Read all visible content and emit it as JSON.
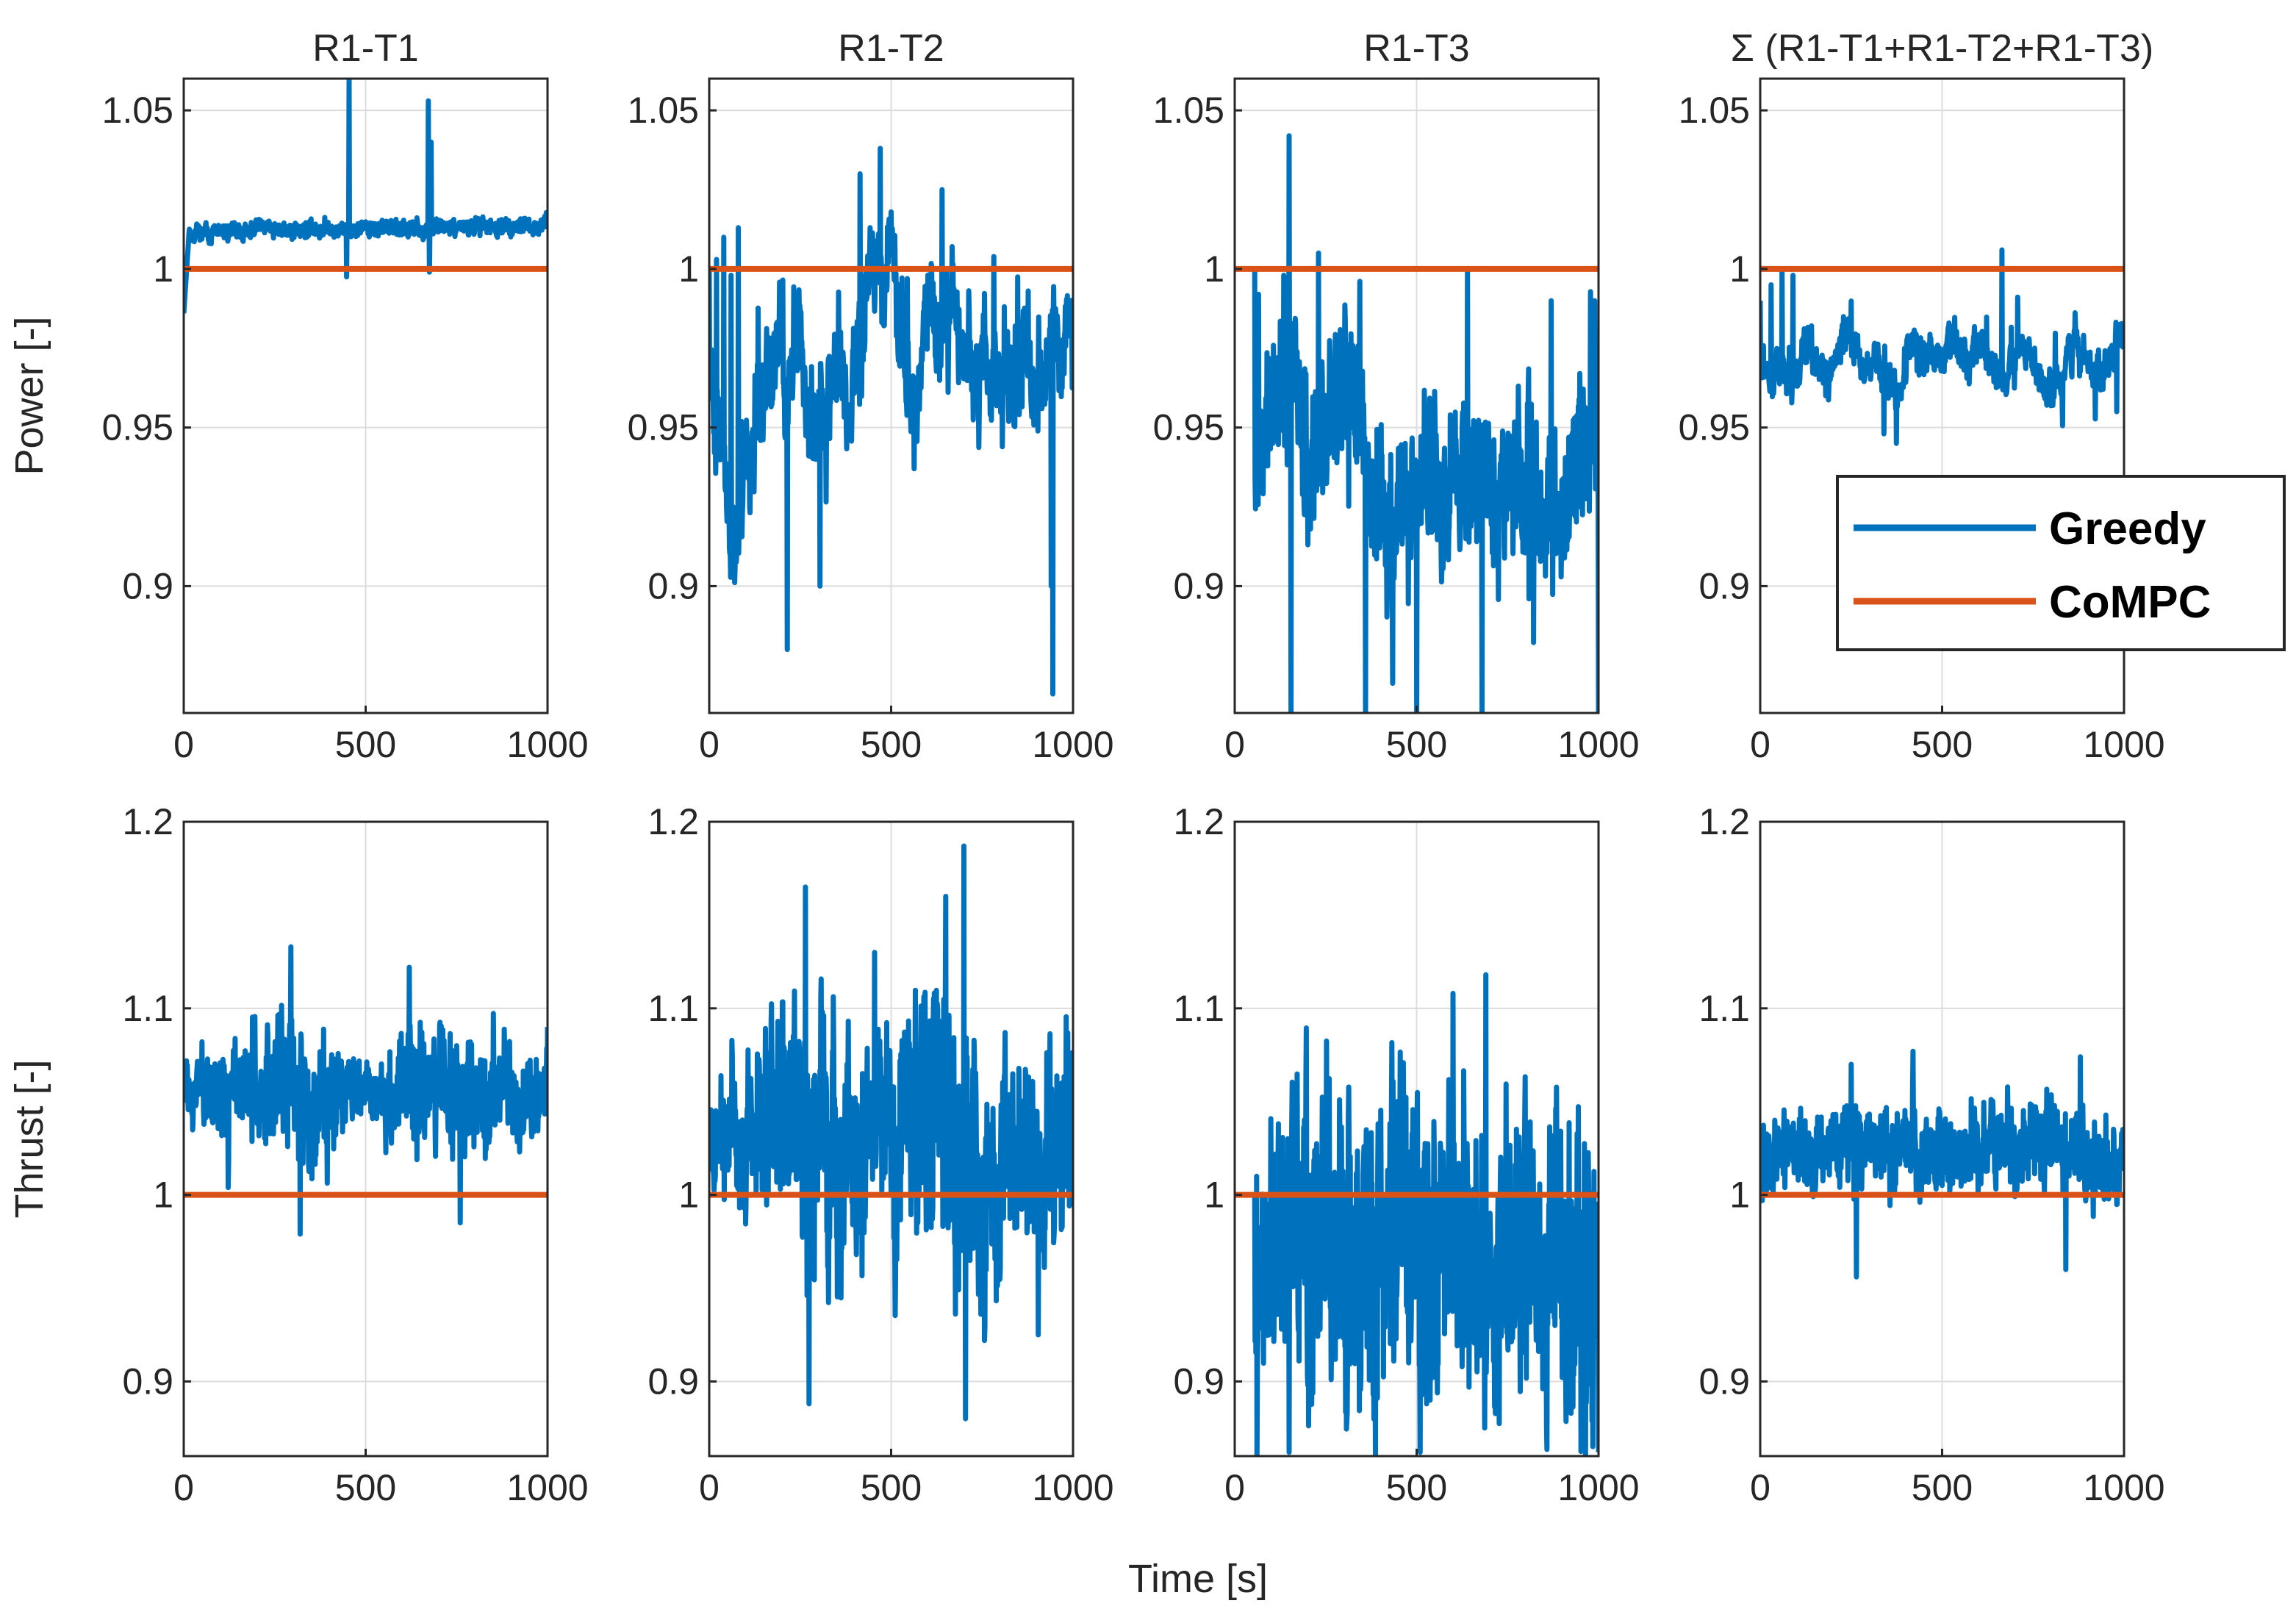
{
  "chart_data": [
    {
      "type": "line",
      "id": "p-r1t1",
      "row": 0,
      "col": 0,
      "title": "R1-T1",
      "ylabel": "Power [-]",
      "xlabel": "",
      "xlim": [
        0,
        1000
      ],
      "ylim": [
        0.86,
        1.06
      ],
      "xticks": [
        0,
        500,
        1000
      ],
      "xticklabels": [
        "0",
        "500",
        "1000"
      ],
      "yticks": [
        0.9,
        0.95,
        1,
        1.05
      ],
      "yticklabels": [
        "0.9",
        "0.95",
        "1",
        "1.05"
      ],
      "grid": true,
      "series": [
        {
          "name": "Greedy",
          "gen": {
            "start": 0,
            "base": 1.012,
            "baseEnd": 1.013,
            "noise": 0.0018,
            "sharp": 0,
            "slow": 0.0005,
            "ramp": [
              0.986,
              0.012,
              15
            ],
            "seed": 11,
            "spikes": [
              [
                455,
                1.06
              ],
              [
                448,
                0.9975
              ],
              [
                672,
                1.053
              ],
              [
                676,
                0.999
              ],
              [
                680,
                1.04
              ]
            ]
          }
        },
        {
          "name": "CoMPC",
          "x": [
            0,
            1000
          ],
          "y": [
            1,
            1
          ]
        }
      ]
    },
    {
      "type": "line",
      "id": "p-r1t2",
      "row": 0,
      "col": 1,
      "title": "R1-T2",
      "ylabel": "",
      "xlabel": "",
      "xlim": [
        0,
        1000
      ],
      "ylim": [
        0.86,
        1.06
      ],
      "xticks": [
        0,
        500,
        1000
      ],
      "xticklabels": [
        "0",
        "500",
        "1000"
      ],
      "yticks": [
        0.9,
        0.95,
        1,
        1.05
      ],
      "yticklabels": [
        "0.9",
        "0.95",
        "1",
        "1.05"
      ],
      "grid": true,
      "series": [
        {
          "name": "Greedy",
          "gen": {
            "start": 0,
            "base": 0.972,
            "noise": 0.008,
            "sharp": 0.006,
            "slow": 0.022,
            "seed": 23,
            "head": [
              [
                0,
                1.0
              ],
              [
                20,
                1.003
              ],
              [
                40,
                1.01
              ],
              [
                60,
                0.998
              ],
              [
                80,
                1.013
              ]
            ],
            "spikes": [
              [
                215,
                0.88
              ],
              [
                470,
                1.038
              ],
              [
                945,
                0.866
              ],
              [
                940,
                0.9
              ],
              [
                415,
                1.03
              ],
              [
                640,
                1.025
              ],
              [
                305,
                0.9
              ]
            ]
          }
        },
        {
          "name": "CoMPC",
          "x": [
            0,
            1000
          ],
          "y": [
            1,
            1
          ]
        }
      ]
    },
    {
      "type": "line",
      "id": "p-r1t3",
      "row": 0,
      "col": 2,
      "title": "R1-T3",
      "ylabel": "",
      "xlabel": "",
      "xlim": [
        0,
        1000
      ],
      "ylim": [
        0.86,
        1.06
      ],
      "xticks": [
        0,
        500,
        1000
      ],
      "xticklabels": [
        "0",
        "500",
        "1000"
      ],
      "yticks": [
        0.9,
        0.95,
        1,
        1.05
      ],
      "yticklabels": [
        "0.9",
        "0.95",
        "1",
        "1.05"
      ],
      "grid": true,
      "series": [
        {
          "name": "Greedy",
          "gen": {
            "start": 55,
            "base": 0.938,
            "noise": 0.014,
            "sharp": 0.008,
            "slow": 0.015,
            "seed": 37,
            "head": [
              [
                55,
                1.0
              ],
              [
                65,
                0.992
              ]
            ],
            "spikes": [
              [
                150,
                1.042
              ],
              [
                135,
                0.998
              ],
              [
                230,
                1.005
              ],
              [
                155,
                0.86
              ],
              [
                360,
                0.86
              ],
              [
                500,
                0.86
              ],
              [
                680,
                0.86
              ],
              [
                870,
                0.99
              ],
              [
                990,
                0.99
              ],
              [
                1000,
                0.86
              ],
              [
                640,
                1.0
              ]
            ]
          }
        },
        {
          "name": "CoMPC",
          "x": [
            0,
            1000
          ],
          "y": [
            1,
            1
          ]
        }
      ]
    },
    {
      "type": "line",
      "id": "p-sum",
      "row": 0,
      "col": 3,
      "title": "Σ (R1-T1+R1-T2+R1-T3)",
      "ylabel": "",
      "xlabel": "",
      "xlim": [
        0,
        1000
      ],
      "ylim": [
        0.86,
        1.06
      ],
      "xticks": [
        0,
        500,
        1000
      ],
      "xticklabels": [
        "0",
        "500",
        "1000"
      ],
      "yticks": [
        0.9,
        0.95,
        1,
        1.05
      ],
      "yticklabels": [
        "0.9",
        "0.95",
        "1",
        "1.05"
      ],
      "grid": true,
      "series": [
        {
          "name": "Greedy",
          "gen": {
            "start": 0,
            "base": 0.972,
            "noise": 0.0035,
            "sharp": 0.003,
            "slow": 0.008,
            "seed": 53,
            "head": [
              [
                0,
                0.99
              ],
              [
                30,
                0.995
              ],
              [
                60,
                1.0
              ],
              [
                90,
                0.998
              ]
            ],
            "spikes": [
              [
                375,
                0.945
              ],
              [
                340,
                0.948
              ],
              [
                665,
                1.006
              ],
              [
                980,
                0.955
              ],
              [
                180,
                0.96
              ]
            ]
          }
        },
        {
          "name": "CoMPC",
          "x": [
            0,
            1000
          ],
          "y": [
            1,
            1
          ]
        }
      ]
    },
    {
      "type": "line",
      "id": "t-r1t1",
      "row": 1,
      "col": 0,
      "title": "",
      "ylabel": "Thrust [-]",
      "xlabel": "",
      "xlim": [
        0,
        1000
      ],
      "ylim": [
        0.86,
        1.2
      ],
      "xticks": [
        0,
        500,
        1000
      ],
      "xticklabels": [
        "0",
        "500",
        "1000"
      ],
      "yticks": [
        0.9,
        1,
        1.1,
        1.2
      ],
      "yticklabels": [
        "0.9",
        "1",
        "1.1",
        "1.2"
      ],
      "grid": true,
      "series": [
        {
          "name": "Greedy",
          "gen": {
            "start": 0,
            "base": 1.055,
            "noise": 0.018,
            "sharp": 0.008,
            "slow": 0.003,
            "envelope": [
              [
                0,
                0.5
              ],
              [
                100,
                0.9
              ],
              [
                300,
                1.5
              ],
              [
                500,
                0.5
              ],
              [
                650,
                1.4
              ],
              [
                850,
                1.0
              ],
              [
                1000,
                0.7
              ]
            ],
            "seed": 71,
            "spikes": [
              [
                295,
                1.133
              ],
              [
                620,
                1.122
              ],
              [
                320,
                0.979
              ],
              [
                760,
                0.985
              ],
              [
                1000,
                1.09
              ]
            ]
          }
        },
        {
          "name": "CoMPC",
          "x": [
            0,
            1000
          ],
          "y": [
            1,
            1
          ]
        }
      ]
    },
    {
      "type": "line",
      "id": "t-r1t2",
      "row": 1,
      "col": 1,
      "title": "",
      "ylabel": "",
      "xlabel": "",
      "xlim": [
        0,
        1000
      ],
      "ylim": [
        0.86,
        1.2
      ],
      "xticks": [
        0,
        500,
        1000
      ],
      "xticklabels": [
        "0",
        "500",
        "1000"
      ],
      "yticks": [
        0.9,
        1,
        1.1,
        1.2
      ],
      "yticklabels": [
        "0.9",
        "1",
        "1.1",
        "1.2"
      ],
      "grid": true,
      "series": [
        {
          "name": "Greedy",
          "gen": {
            "start": 0,
            "base": 1.028,
            "noise": 0.036,
            "sharp": 0.012,
            "slow": 0.012,
            "envelope": [
              [
                0,
                0.4
              ],
              [
                150,
                0.8
              ],
              [
                260,
                1.5
              ],
              [
                450,
                0.8
              ],
              [
                650,
                1.6
              ],
              [
                850,
                1.0
              ],
              [
                1000,
                1.1
              ]
            ],
            "seed": 89,
            "spikes": [
              [
                700,
                1.187
              ],
              [
                265,
                1.165
              ],
              [
                275,
                0.888
              ],
              [
                705,
                0.88
              ],
              [
                905,
                0.925
              ],
              [
                650,
                1.16
              ],
              [
                455,
                1.13
              ]
            ]
          }
        },
        {
          "name": "CoMPC",
          "x": [
            0,
            1000
          ],
          "y": [
            1,
            1
          ]
        }
      ]
    },
    {
      "type": "line",
      "id": "t-r1t3",
      "row": 1,
      "col": 2,
      "title": "",
      "ylabel": "",
      "xlabel": "",
      "xlim": [
        0,
        1000
      ],
      "ylim": [
        0.86,
        1.2
      ],
      "xticks": [
        0,
        500,
        1000
      ],
      "xticklabels": [
        "0",
        "500",
        "1000"
      ],
      "yticks": [
        0.9,
        1,
        1.1,
        1.2
      ],
      "yticklabels": [
        "0.9",
        "1",
        "1.1",
        "1.2"
      ],
      "grid": true,
      "series": [
        {
          "name": "Greedy",
          "gen": {
            "start": 55,
            "base": 0.965,
            "noise": 0.045,
            "sharp": 0.014,
            "slow": 0.01,
            "envelope": [
              [
                55,
                0.6
              ],
              [
                200,
                1.3
              ],
              [
                500,
                1.2
              ],
              [
                700,
                1.0
              ],
              [
                1000,
                1.3
              ]
            ],
            "seed": 97,
            "head": [
              [
                55,
                1.0
              ],
              [
                60,
                1.01
              ]
            ],
            "spikes": [
              [
                690,
                1.118
              ],
              [
                600,
                1.108
              ],
              [
                1000,
                1.113
              ],
              [
                150,
                0.862
              ],
              [
                510,
                0.862
              ],
              [
                1000,
                0.862
              ]
            ]
          }
        },
        {
          "name": "CoMPC",
          "x": [
            0,
            1000
          ],
          "y": [
            1,
            1
          ]
        }
      ]
    },
    {
      "type": "line",
      "id": "t-sum",
      "row": 1,
      "col": 3,
      "title": "",
      "ylabel": "",
      "xlabel": "",
      "xlim": [
        0,
        1000
      ],
      "ylim": [
        0.86,
        1.2
      ],
      "xticks": [
        0,
        500,
        1000
      ],
      "xticklabels": [
        "0",
        "500",
        "1000"
      ],
      "yticks": [
        0.9,
        1,
        1.1,
        1.2
      ],
      "yticklabels": [
        "0.9",
        "1",
        "1.1",
        "1.2"
      ],
      "grid": true,
      "series": [
        {
          "name": "Greedy",
          "gen": {
            "start": 0,
            "base": 1.022,
            "noise": 0.014,
            "sharp": 0.006,
            "slow": 0.004,
            "seed": 113,
            "head": [
              [
                0,
                1.025
              ],
              [
                40,
                1.04
              ],
              [
                80,
                1.03
              ]
            ],
            "spikes": [
              [
                265,
                0.956
              ],
              [
                420,
                1.077
              ],
              [
                840,
                0.96
              ],
              [
                250,
                1.07
              ],
              [
                880,
                1.074
              ]
            ]
          }
        },
        {
          "name": "CoMPC",
          "x": [
            0,
            1000
          ],
          "y": [
            1,
            1
          ]
        }
      ]
    }
  ],
  "shared": {
    "xlabel": "Time [s]",
    "legend": {
      "location": "right of top-right panel, overlapping",
      "entries": [
        {
          "name": "Greedy",
          "color": "#0072BD"
        },
        {
          "name": "CoMPC",
          "color": "#D95319"
        }
      ]
    }
  },
  "colors": {
    "greedy": "#0072BD",
    "compc": "#D95319",
    "grid": "#DCDCDC",
    "axes": "#262626"
  }
}
